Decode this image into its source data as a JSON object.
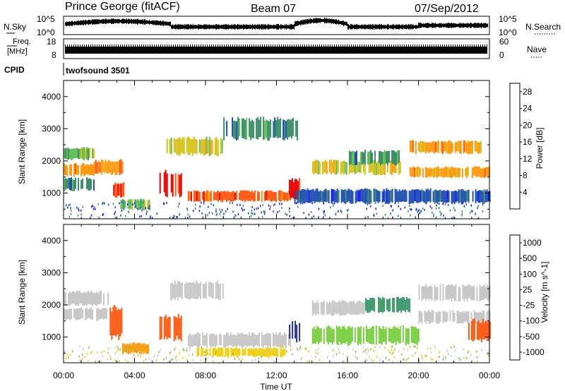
{
  "header": {
    "station": "Prince George (fitACF)",
    "beam": "Beam 07",
    "date": "07/Sep/2012"
  },
  "top_panels": {
    "nsky_label": "N.Sky",
    "nsky_ticks": [
      "10^5",
      "10^0"
    ],
    "nsearch_label": "N.Search",
    "nsearch_ticks": [
      "10^5",
      "10^0"
    ],
    "freq_label": "Freq.",
    "freq_unit": "[MHz]",
    "freq_ticks": [
      "18",
      "8"
    ],
    "nave_label": "Nave",
    "nave_ticks": [
      "60",
      "0"
    ],
    "cpid_label": "CPID",
    "cpid_value": "twofsound 3501"
  },
  "colors": {
    "power_scale": [
      "#1a1aff",
      "#2050b0",
      "#3d8f6a",
      "#66c05a",
      "#d6c21a",
      "#ff9a10",
      "#ff5a10",
      "#ee0000"
    ],
    "velocity_scale": [
      "#e40000",
      "#ff5a10",
      "#ff9a10",
      "#f0d010",
      "#c8c8c8",
      "#78d040",
      "#3d9a6a",
      "#2030b0"
    ],
    "ground_scatter": "#c8c8c8"
  },
  "chart_data": [
    {
      "type": "heatmap",
      "title": "",
      "xlabel": "",
      "ylabel": "Slant Range [km]",
      "x_ticks": [
        "00:00",
        "04:00",
        "08:00",
        "12:00",
        "16:00",
        "20:00",
        "00:00"
      ],
      "y_ticks": [
        "1000",
        "2000",
        "3000",
        "4000"
      ],
      "xlim_hours": [
        0,
        24
      ],
      "ylim_km": [
        200,
        4500
      ],
      "colorbar_label": "Power [dB]",
      "colorbar_ticks": [
        "4",
        "8",
        "12",
        "16",
        "20",
        "24",
        "28"
      ],
      "colorbar_range": [
        0,
        30
      ],
      "regions": [
        {
          "t0": 0.0,
          "t1": 1.7,
          "r0": 2050,
          "r1": 2400,
          "value": 14
        },
        {
          "t0": 0.0,
          "t1": 1.7,
          "r0": 1550,
          "r1": 1900,
          "value": 20
        },
        {
          "t0": 0.0,
          "t1": 1.7,
          "r0": 1100,
          "r1": 1450,
          "value": 8
        },
        {
          "t0": 1.7,
          "t1": 3.3,
          "r0": 1600,
          "r1": 2000,
          "value": 22
        },
        {
          "t0": 2.8,
          "t1": 3.4,
          "r0": 900,
          "r1": 1300,
          "value": 24
        },
        {
          "t0": 3.2,
          "t1": 4.8,
          "r0": 500,
          "r1": 800,
          "value": 12
        },
        {
          "t0": 5.4,
          "t1": 6.6,
          "r0": 950,
          "r1": 1650,
          "value": 28
        },
        {
          "t0": 5.8,
          "t1": 9.0,
          "r0": 2200,
          "r1": 2700,
          "value": 18
        },
        {
          "t0": 9.0,
          "t1": 13.2,
          "r0": 2700,
          "r1": 3300,
          "value": 8
        },
        {
          "t0": 7.0,
          "t1": 12.8,
          "r0": 750,
          "r1": 1050,
          "value": 24
        },
        {
          "t0": 12.7,
          "t1": 13.3,
          "r0": 850,
          "r1": 1400,
          "value": 28
        },
        {
          "t0": 14.0,
          "t1": 19.0,
          "r0": 1600,
          "r1": 2000,
          "value": 18
        },
        {
          "t0": 16.0,
          "t1": 19.0,
          "r0": 1900,
          "r1": 2300,
          "value": 10
        },
        {
          "t0": 19.5,
          "t1": 23.5,
          "r0": 2250,
          "r1": 2600,
          "value": 22
        },
        {
          "t0": 19.5,
          "t1": 24.0,
          "r0": 1500,
          "r1": 1800,
          "value": 20
        },
        {
          "t0": 13.0,
          "t1": 24.0,
          "r0": 700,
          "r1": 1100,
          "value": 6
        }
      ]
    },
    {
      "type": "heatmap",
      "title": "",
      "xlabel": "Time UT",
      "ylabel": "Slant Range [km]",
      "x_ticks": [
        "00:00",
        "04:00",
        "08:00",
        "12:00",
        "16:00",
        "20:00",
        "00:00"
      ],
      "y_ticks": [
        "1000",
        "2000",
        "3000",
        "4000"
      ],
      "xlim_hours": [
        0,
        24
      ],
      "ylim_km": [
        200,
        4500
      ],
      "colorbar_label": "Velocity [m s^-1]",
      "colorbar_ticks": [
        "1000",
        "500",
        "100",
        "25",
        "-25",
        "-100",
        "-500",
        "-1000"
      ],
      "colorbar_range": [
        -1000,
        1000
      ],
      "regions": [
        {
          "t0": 0.0,
          "t1": 2.5,
          "r0": 2000,
          "r1": 2400,
          "value": 0
        },
        {
          "t0": 0.0,
          "t1": 2.5,
          "r0": 1550,
          "r1": 1900,
          "value": 0
        },
        {
          "t0": 2.6,
          "t1": 3.3,
          "r0": 1000,
          "r1": 1900,
          "value": -500
        },
        {
          "t0": 3.3,
          "t1": 4.8,
          "r0": 500,
          "r1": 800,
          "value": -150
        },
        {
          "t0": 5.4,
          "t1": 6.6,
          "r0": 950,
          "r1": 1650,
          "value": -700
        },
        {
          "t0": 6.0,
          "t1": 9.0,
          "r0": 2200,
          "r1": 2700,
          "value": 0
        },
        {
          "t0": 7.0,
          "t1": 12.8,
          "r0": 700,
          "r1": 1100,
          "value": 0
        },
        {
          "t0": 7.5,
          "t1": 12.5,
          "r0": 400,
          "r1": 650,
          "value": -60
        },
        {
          "t0": 12.7,
          "t1": 13.3,
          "r0": 900,
          "r1": 1450,
          "value": 800
        },
        {
          "t0": 14.0,
          "t1": 17.0,
          "r0": 1700,
          "r1": 2100,
          "value": 0
        },
        {
          "t0": 17.0,
          "t1": 19.5,
          "r0": 1800,
          "r1": 2200,
          "value": 300
        },
        {
          "t0": 14.0,
          "t1": 20.0,
          "r0": 800,
          "r1": 1300,
          "value": 60
        },
        {
          "t0": 20.0,
          "t1": 24.0,
          "r0": 2150,
          "r1": 2600,
          "value": 0
        },
        {
          "t0": 20.0,
          "t1": 24.0,
          "r0": 1450,
          "r1": 1800,
          "value": 0
        },
        {
          "t0": 22.8,
          "t1": 24.0,
          "r0": 900,
          "r1": 1500,
          "value": -500
        }
      ]
    }
  ]
}
